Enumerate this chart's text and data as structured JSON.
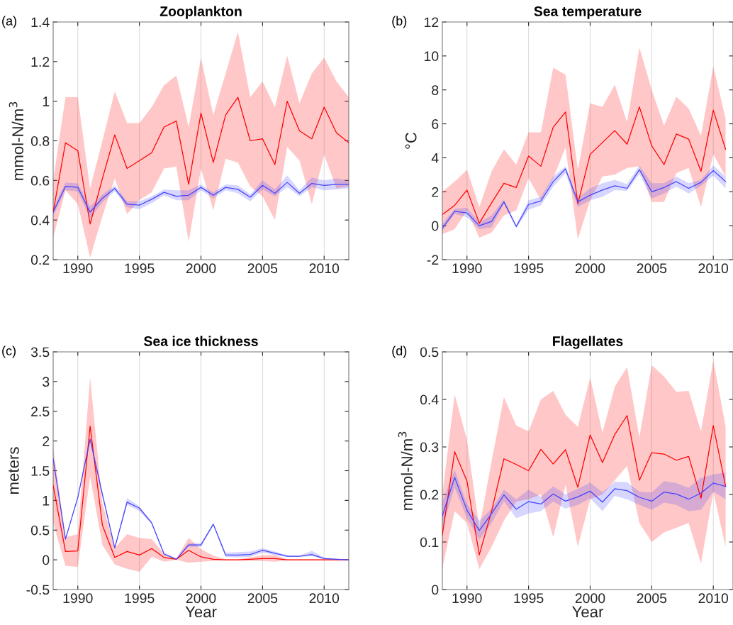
{
  "chart_data": [
    {
      "type": "line",
      "title": "Zooplankton",
      "ylabel": "mmol-N/m$^{3}$",
      "annotations": [
        "(a)"
      ],
      "grid": "x",
      "x": [
        1988,
        1989,
        1990,
        1991,
        1992,
        1993,
        1994,
        1995,
        1996,
        1997,
        1998,
        1999,
        2000,
        2001,
        2002,
        2003,
        2004,
        2005,
        2006,
        2007,
        2008,
        2009,
        2010,
        2011,
        2012
      ],
      "xlim": [
        1988,
        2012
      ],
      "xticks": [
        1990,
        1995,
        2000,
        2005,
        2010
      ],
      "ylim": [
        0.2,
        1.4
      ],
      "yticks": [
        0.2,
        0.4,
        0.6,
        0.8,
        1,
        1.2,
        1.4
      ],
      "series": [
        {
          "color": "#ff0000",
          "values": [
            0.44,
            0.79,
            0.75,
            0.38,
            0.61,
            0.83,
            0.66,
            0.7,
            0.74,
            0.87,
            0.9,
            0.58,
            0.94,
            0.69,
            0.93,
            1.02,
            0.8,
            0.81,
            0.68,
            1.0,
            0.85,
            0.81,
            0.97,
            0.84,
            0.79
          ],
          "upper": [
            0.6,
            1.02,
            1.02,
            0.56,
            0.8,
            1.05,
            0.89,
            0.89,
            0.97,
            1.08,
            1.13,
            0.87,
            1.22,
            0.93,
            1.14,
            1.35,
            1.02,
            1.1,
            0.97,
            1.23,
            0.99,
            1.14,
            1.22,
            1.1,
            1.02
          ],
          "lower": [
            0.31,
            0.55,
            0.48,
            0.21,
            0.42,
            0.61,
            0.43,
            0.5,
            0.54,
            0.66,
            0.67,
            0.29,
            0.66,
            0.45,
            0.71,
            0.69,
            0.57,
            0.52,
            0.4,
            0.77,
            0.7,
            0.48,
            0.73,
            0.56,
            0.57
          ]
        },
        {
          "color": "#4444ff",
          "values": [
            0.44,
            0.57,
            0.565,
            0.44,
            0.51,
            0.56,
            0.48,
            0.475,
            0.505,
            0.54,
            0.52,
            0.525,
            0.565,
            0.525,
            0.565,
            0.555,
            0.515,
            0.575,
            0.535,
            0.59,
            0.535,
            0.585,
            0.575,
            0.58,
            0.58
          ],
          "upper": [
            0.46,
            0.59,
            0.585,
            0.47,
            0.53,
            0.575,
            0.495,
            0.495,
            0.52,
            0.555,
            0.55,
            0.55,
            0.58,
            0.54,
            0.58,
            0.575,
            0.53,
            0.6,
            0.555,
            0.625,
            0.55,
            0.615,
            0.6,
            0.61,
            0.6
          ],
          "lower": [
            0.42,
            0.55,
            0.545,
            0.41,
            0.49,
            0.545,
            0.465,
            0.455,
            0.485,
            0.525,
            0.5,
            0.5,
            0.55,
            0.51,
            0.55,
            0.535,
            0.495,
            0.555,
            0.52,
            0.565,
            0.52,
            0.565,
            0.55,
            0.555,
            0.56
          ]
        }
      ]
    },
    {
      "type": "line",
      "title": "Sea temperature",
      "ylabel": "°C",
      "annotations": [
        "(b)"
      ],
      "grid": "x",
      "x": [
        1988,
        1989,
        1990,
        1991,
        1992,
        1993,
        1994,
        1995,
        1996,
        1997,
        1998,
        1999,
        2000,
        2001,
        2002,
        2003,
        2004,
        2005,
        2006,
        2007,
        2008,
        2009,
        2010,
        2011
      ],
      "xlim": [
        1988,
        2011.6
      ],
      "xticks": [
        1990,
        1995,
        2000,
        2005,
        2010
      ],
      "ylim": [
        -2,
        12
      ],
      "yticks": [
        -2,
        0,
        2,
        4,
        6,
        8,
        10,
        12
      ],
      "series": [
        {
          "color": "#ff0000",
          "values": [
            0.65,
            1.2,
            2.1,
            0.15,
            1.35,
            2.5,
            2.25,
            4.1,
            3.5,
            5.8,
            6.7,
            1.3,
            4.2,
            4.9,
            5.6,
            4.8,
            7.0,
            4.7,
            3.6,
            5.4,
            5.1,
            3.2,
            6.8,
            4.5
          ],
          "upper": [
            2.0,
            2.6,
            3.3,
            1.1,
            3.2,
            4.5,
            3.6,
            5.5,
            5.5,
            9.3,
            8.9,
            3.3,
            7.2,
            7.0,
            8.3,
            6.1,
            10.5,
            8.0,
            5.9,
            7.6,
            6.9,
            5.3,
            9.4,
            6.3
          ],
          "lower": [
            -0.5,
            -0.2,
            0.9,
            -0.7,
            -0.4,
            0.6,
            0.9,
            2.8,
            1.5,
            2.8,
            4.6,
            -0.8,
            1.5,
            2.9,
            3.0,
            3.4,
            3.5,
            1.4,
            1.4,
            3.1,
            3.4,
            1.1,
            4.2,
            2.9
          ]
        },
        {
          "color": "#4444ff",
          "values": [
            -0.15,
            0.85,
            0.75,
            0.0,
            0.25,
            1.4,
            -0.05,
            1.25,
            1.45,
            2.6,
            3.35,
            1.4,
            1.8,
            2.1,
            2.35,
            2.2,
            3.3,
            2.0,
            2.25,
            2.6,
            2.2,
            2.55,
            3.25,
            2.6
          ],
          "upper": [
            0.1,
            1.0,
            1.05,
            0.2,
            0.6,
            1.55,
            0.05,
            1.5,
            1.7,
            2.9,
            3.5,
            1.6,
            2.2,
            2.5,
            2.7,
            2.45,
            3.55,
            2.5,
            2.5,
            2.9,
            2.5,
            2.7,
            3.55,
            2.9
          ],
          "lower": [
            -0.3,
            0.7,
            0.5,
            -0.2,
            -0.1,
            1.3,
            -0.15,
            0.95,
            1.2,
            2.3,
            3.1,
            1.1,
            1.5,
            1.7,
            2.1,
            2.05,
            3.05,
            1.6,
            1.9,
            2.3,
            1.9,
            2.35,
            2.95,
            2.2
          ]
        }
      ]
    },
    {
      "type": "line",
      "title": "Sea ice thickness",
      "ylabel": "meters",
      "xlabel": "Year",
      "annotations": [
        "(c)"
      ],
      "grid": "x",
      "x": [
        1988,
        1989,
        1990,
        1991,
        1992,
        1993,
        1994,
        1995,
        1996,
        1997,
        1998,
        1999,
        2000,
        2001,
        2002,
        2003,
        2004,
        2005,
        2006,
        2007,
        2008,
        2009,
        2010,
        2011,
        2012
      ],
      "xlim": [
        1988,
        2012
      ],
      "xticks": [
        1990,
        1995,
        2000,
        2005,
        2010
      ],
      "ylim": [
        -0.5,
        3.5
      ],
      "yticks": [
        -0.5,
        0,
        0.5,
        1,
        1.5,
        2,
        2.5,
        3,
        3.5
      ],
      "series": [
        {
          "color": "#ff0000",
          "values": [
            1.25,
            0.14,
            0.15,
            2.25,
            0.58,
            0.04,
            0.14,
            0.08,
            0.19,
            0.04,
            0.01,
            0.16,
            0.05,
            0.01,
            0,
            0,
            0.01,
            0.02,
            0.02,
            0,
            0,
            0,
            0,
            0,
            0
          ],
          "upper": [
            1.9,
            0.38,
            0.43,
            3.07,
            0.95,
            0.2,
            0.43,
            0.37,
            0.35,
            0.1,
            0.02,
            0.37,
            0.18,
            0.07,
            0.01,
            0.01,
            0.04,
            0.08,
            0.08,
            0.01,
            0.01,
            0.01,
            0.01,
            0.01,
            0
          ],
          "lower": [
            0.62,
            -0.1,
            -0.12,
            1.4,
            0.25,
            -0.08,
            -0.15,
            -0.2,
            0.05,
            -0.03,
            0,
            -0.05,
            -0.03,
            -0.02,
            -0.01,
            -0.01,
            -0.02,
            -0.02,
            -0.03,
            -0.01,
            -0.01,
            -0.01,
            -0.01,
            -0.01,
            0
          ]
        },
        {
          "color": "#4444ff",
          "values": [
            1.7,
            0.35,
            1.05,
            2.03,
            1.1,
            0.2,
            0.97,
            0.87,
            0.62,
            0.1,
            0.01,
            0.25,
            0.25,
            0.6,
            0.08,
            0.08,
            0.09,
            0.16,
            0.11,
            0.06,
            0.06,
            0.09,
            0.02,
            0.01,
            0
          ],
          "upper": [
            1.75,
            0.37,
            1.07,
            2.06,
            1.13,
            0.22,
            1.04,
            0.9,
            0.64,
            0.12,
            0.02,
            0.28,
            0.28,
            0.62,
            0.12,
            0.13,
            0.14,
            0.2,
            0.14,
            0.08,
            0.07,
            0.15,
            0.04,
            0.02,
            0
          ],
          "lower": [
            1.65,
            0.33,
            1.03,
            2.0,
            1.07,
            0.18,
            0.93,
            0.82,
            0.6,
            0.08,
            0,
            0.22,
            0.22,
            0.58,
            0.05,
            0.04,
            0.05,
            0.12,
            0.08,
            0.05,
            0.05,
            0.06,
            0.01,
            0,
            0
          ]
        }
      ]
    },
    {
      "type": "line",
      "title": "Flagellates",
      "ylabel": "mmol-N/m$^{3}$",
      "xlabel": "Year",
      "annotations": [
        "(d)"
      ],
      "grid": "x",
      "x": [
        1988,
        1989,
        1990,
        1991,
        1992,
        1993,
        1994,
        1995,
        1996,
        1997,
        1998,
        1999,
        2000,
        2001,
        2002,
        2003,
        2004,
        2005,
        2006,
        2007,
        2008,
        2009,
        2010,
        2011
      ],
      "xlim": [
        1988,
        2011.6
      ],
      "xticks": [
        1990,
        1995,
        2000,
        2005,
        2010
      ],
      "ylim": [
        0,
        0.5
      ],
      "yticks": [
        0,
        0.1,
        0.2,
        0.3,
        0.4,
        0.5
      ],
      "series": [
        {
          "color": "#ff0000",
          "values": [
            0.115,
            0.29,
            0.228,
            0.073,
            0.165,
            0.275,
            0.263,
            0.25,
            0.295,
            0.264,
            0.294,
            0.215,
            0.325,
            0.267,
            0.326,
            0.366,
            0.23,
            0.288,
            0.285,
            0.272,
            0.28,
            0.192,
            0.345,
            0.217
          ],
          "upper": [
            0.2,
            0.41,
            0.315,
            0.13,
            0.27,
            0.405,
            0.345,
            0.333,
            0.4,
            0.418,
            0.368,
            0.342,
            0.446,
            0.33,
            0.427,
            0.468,
            0.32,
            0.472,
            0.448,
            0.416,
            0.418,
            0.333,
            0.483,
            0.343
          ],
          "lower": [
            0.045,
            0.165,
            0.14,
            0.043,
            0.09,
            0.145,
            0.185,
            0.19,
            0.2,
            0.11,
            0.22,
            0.09,
            0.19,
            0.2,
            0.23,
            0.26,
            0.14,
            0.1,
            0.12,
            0.13,
            0.14,
            0.055,
            0.205,
            0.09
          ]
        },
        {
          "color": "#4444ff",
          "values": [
            0.155,
            0.236,
            0.167,
            0.124,
            0.16,
            0.199,
            0.169,
            0.185,
            0.18,
            0.201,
            0.186,
            0.195,
            0.207,
            0.184,
            0.212,
            0.208,
            0.194,
            0.186,
            0.205,
            0.201,
            0.19,
            0.203,
            0.224,
            0.217
          ],
          "upper": [
            0.185,
            0.252,
            0.18,
            0.145,
            0.17,
            0.21,
            0.19,
            0.21,
            0.195,
            0.217,
            0.2,
            0.212,
            0.225,
            0.205,
            0.227,
            0.226,
            0.206,
            0.204,
            0.228,
            0.224,
            0.214,
            0.235,
            0.242,
            0.246
          ],
          "lower": [
            0.13,
            0.215,
            0.15,
            0.105,
            0.14,
            0.186,
            0.15,
            0.16,
            0.165,
            0.185,
            0.17,
            0.178,
            0.192,
            0.165,
            0.197,
            0.19,
            0.178,
            0.168,
            0.183,
            0.178,
            0.165,
            0.168,
            0.206,
            0.19
          ]
        }
      ]
    }
  ]
}
